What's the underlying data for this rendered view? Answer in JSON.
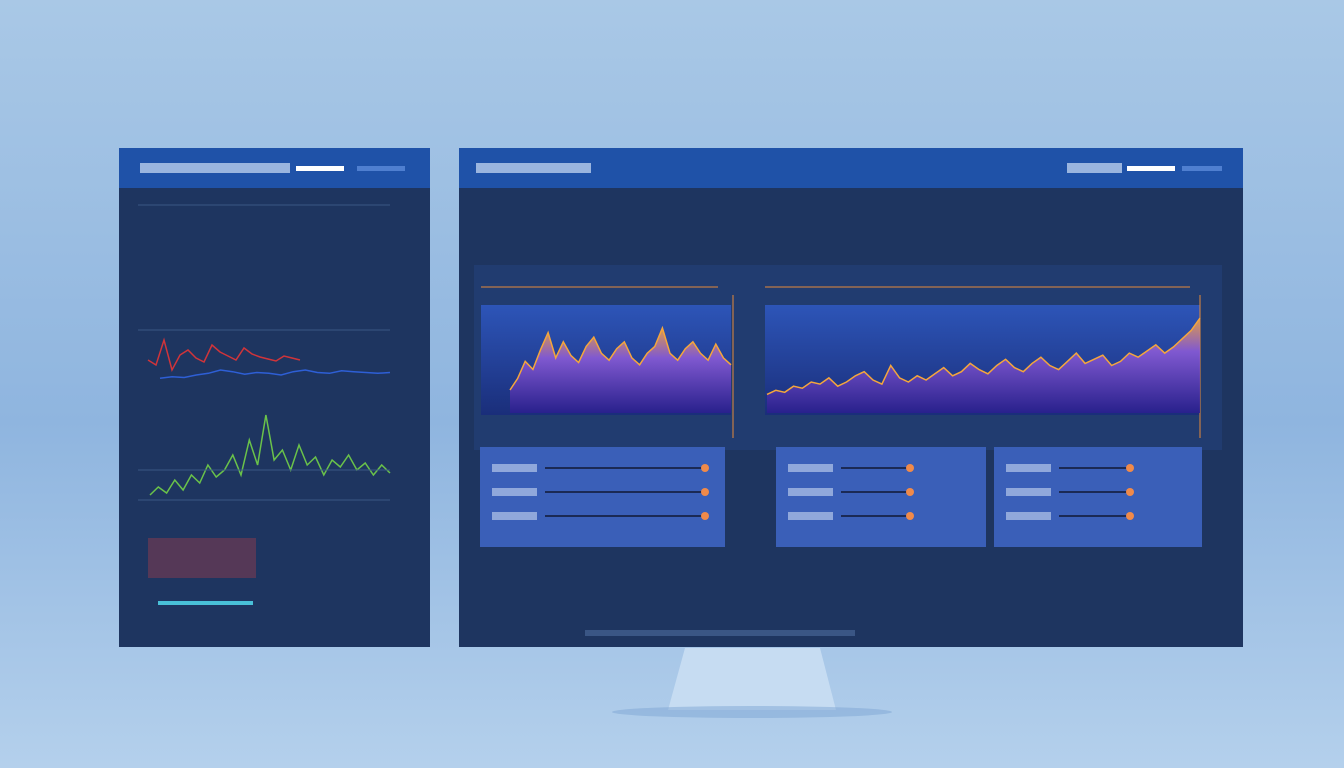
{
  "screen": {
    "left_panel": {
      "red_line": {
        "values": [
          40,
          35,
          60,
          30,
          45,
          50,
          42,
          38,
          55,
          48,
          44,
          40,
          52,
          46,
          43,
          41,
          39,
          44,
          42,
          40
        ]
      },
      "blue_line": {
        "values": [
          20,
          22,
          21,
          24,
          26,
          30,
          28,
          25,
          27,
          26,
          24,
          28,
          30,
          27,
          26,
          29,
          28,
          27,
          26,
          27
        ]
      },
      "green_spikes": {
        "values": [
          10,
          18,
          12,
          25,
          15,
          30,
          22,
          40,
          28,
          35,
          50,
          30,
          65,
          40,
          90,
          45,
          55,
          35,
          60,
          40,
          48,
          30,
          45,
          38,
          50,
          35,
          42,
          30,
          40,
          32
        ]
      }
    },
    "main_panel": {
      "wave_1": {
        "values": [
          20,
          30,
          45,
          38,
          55,
          70,
          48,
          62,
          50,
          44,
          58,
          66,
          52,
          46,
          56,
          62,
          48,
          42,
          52,
          58,
          74,
          52,
          46,
          56,
          62,
          52,
          46,
          60,
          48,
          42
        ]
      },
      "wave_2": {
        "values": [
          18,
          22,
          20,
          26,
          24,
          30,
          28,
          34,
          26,
          30,
          36,
          40,
          32,
          28,
          46,
          34,
          30,
          36,
          32,
          38,
          44,
          36,
          40,
          48,
          42,
          38,
          46,
          52,
          44,
          40,
          48,
          54,
          46,
          42,
          50,
          58,
          48,
          52,
          56,
          46,
          50,
          58,
          54,
          60,
          66,
          58,
          64,
          72,
          80,
          92
        ]
      }
    }
  }
}
